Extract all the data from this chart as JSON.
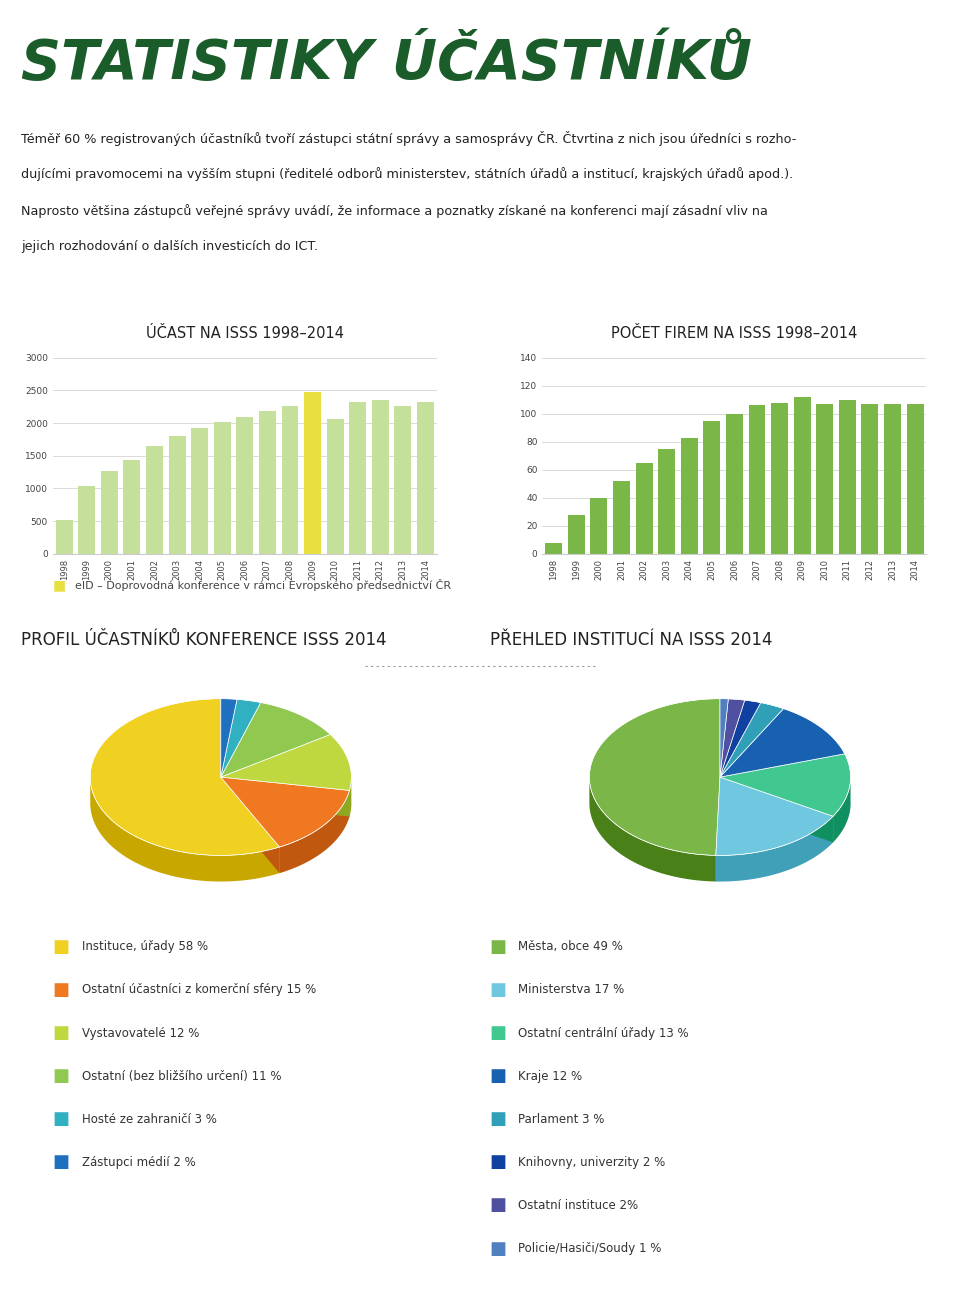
{
  "title": "STATISTIKY ÚČASTNÍKŮ",
  "title_color": "#1a5c2a",
  "bg_color": "#ffffff",
  "text_lines": [
    "Téměř 60 % registrovaných účastníků tvoří zástupci státní správy a samosprávy ČR. Čtvrtina z nich jsou úředníci s rozho-",
    "dujícími pravomocemi na vyšším stupni (ředitelé odborů ministerstev, státních úřadů a institucí, krajských úřadů apod.).",
    "Naprosto většina zástupců veřejné správy uvádí, že informace a poznatky získané na konferenci mají zásadní vliv na",
    "jejich rozhodování o dalších investicích do ICT."
  ],
  "chart1_title": "ÚČAST NA ISSS 1998–2014",
  "chart2_title": "POČET FIREM NA ISSS 1998–2014",
  "chart3_title": "PROFIL ÚČASTNÍKŮ KONFERENCE ISSS 2014",
  "chart4_title": "PŘEHLED INSTITUCÍ NA ISSS 2014",
  "years": [
    "1998",
    "1999",
    "2000",
    "2001",
    "2002",
    "2003",
    "2004",
    "2005",
    "2006",
    "2007",
    "2008",
    "2009",
    "2010",
    "2011",
    "2012",
    "2013",
    "2014"
  ],
  "attendance": [
    520,
    1040,
    1260,
    1440,
    1650,
    1810,
    1930,
    2010,
    2100,
    2180,
    2270,
    2480,
    2060,
    2320,
    2360,
    2270,
    2330
  ],
  "attendance_special_idx": 11,
  "companies": [
    8,
    28,
    40,
    52,
    65,
    75,
    83,
    95,
    100,
    106,
    108,
    112,
    107,
    110,
    107,
    107,
    107
  ],
  "bar_color_light": "#c5e09a",
  "bar_color_special": "#e8e040",
  "bar_color_green": "#7ab648",
  "legend_note": "eID – Doprovodná konference v rámci Evropského předsednictví ČR",
  "pie1_sizes": [
    58,
    15,
    12,
    11,
    3,
    2
  ],
  "pie1_colors": [
    "#f0d020",
    "#f07820",
    "#c0d840",
    "#90c850",
    "#30b0c0",
    "#2070c0"
  ],
  "pie1_dark_colors": [
    "#c8a800",
    "#c05810",
    "#90a820",
    "#60a030",
    "#108090",
    "#0050a0"
  ],
  "pie1_labels": [
    "Instituce, úřady 58 %",
    "Ostatní účastníci z komerční sféry 15 %",
    "Vystavovatelé 12 %",
    "Ostatní (bez bližšího určení) 11 %",
    "Hosté ze zahraničí 3 %",
    "Zástupci médií 2 %"
  ],
  "pie2_sizes": [
    49,
    17,
    13,
    12,
    3,
    2,
    2,
    1
  ],
  "pie2_colors": [
    "#7ab648",
    "#70c8e0",
    "#40c890",
    "#1860b0",
    "#30a0b8",
    "#1040a0",
    "#5050a0",
    "#5080c0"
  ],
  "pie2_dark_colors": [
    "#4a8018",
    "#40a0b8",
    "#109060",
    "#003880",
    "#108090",
    "#002080",
    "#303080",
    "#2860a0"
  ],
  "pie2_labels": [
    "Města, obce 49 %",
    "Ministerstva 17 %",
    "Ostatní centrální úřady 13 %",
    "Kraje 12 %",
    "Parlament 3 %",
    "Knihovny, univerzity 2 %",
    "Ostatní instituce 2%",
    "Policie/Hasiči/Soudy 1 %"
  ]
}
